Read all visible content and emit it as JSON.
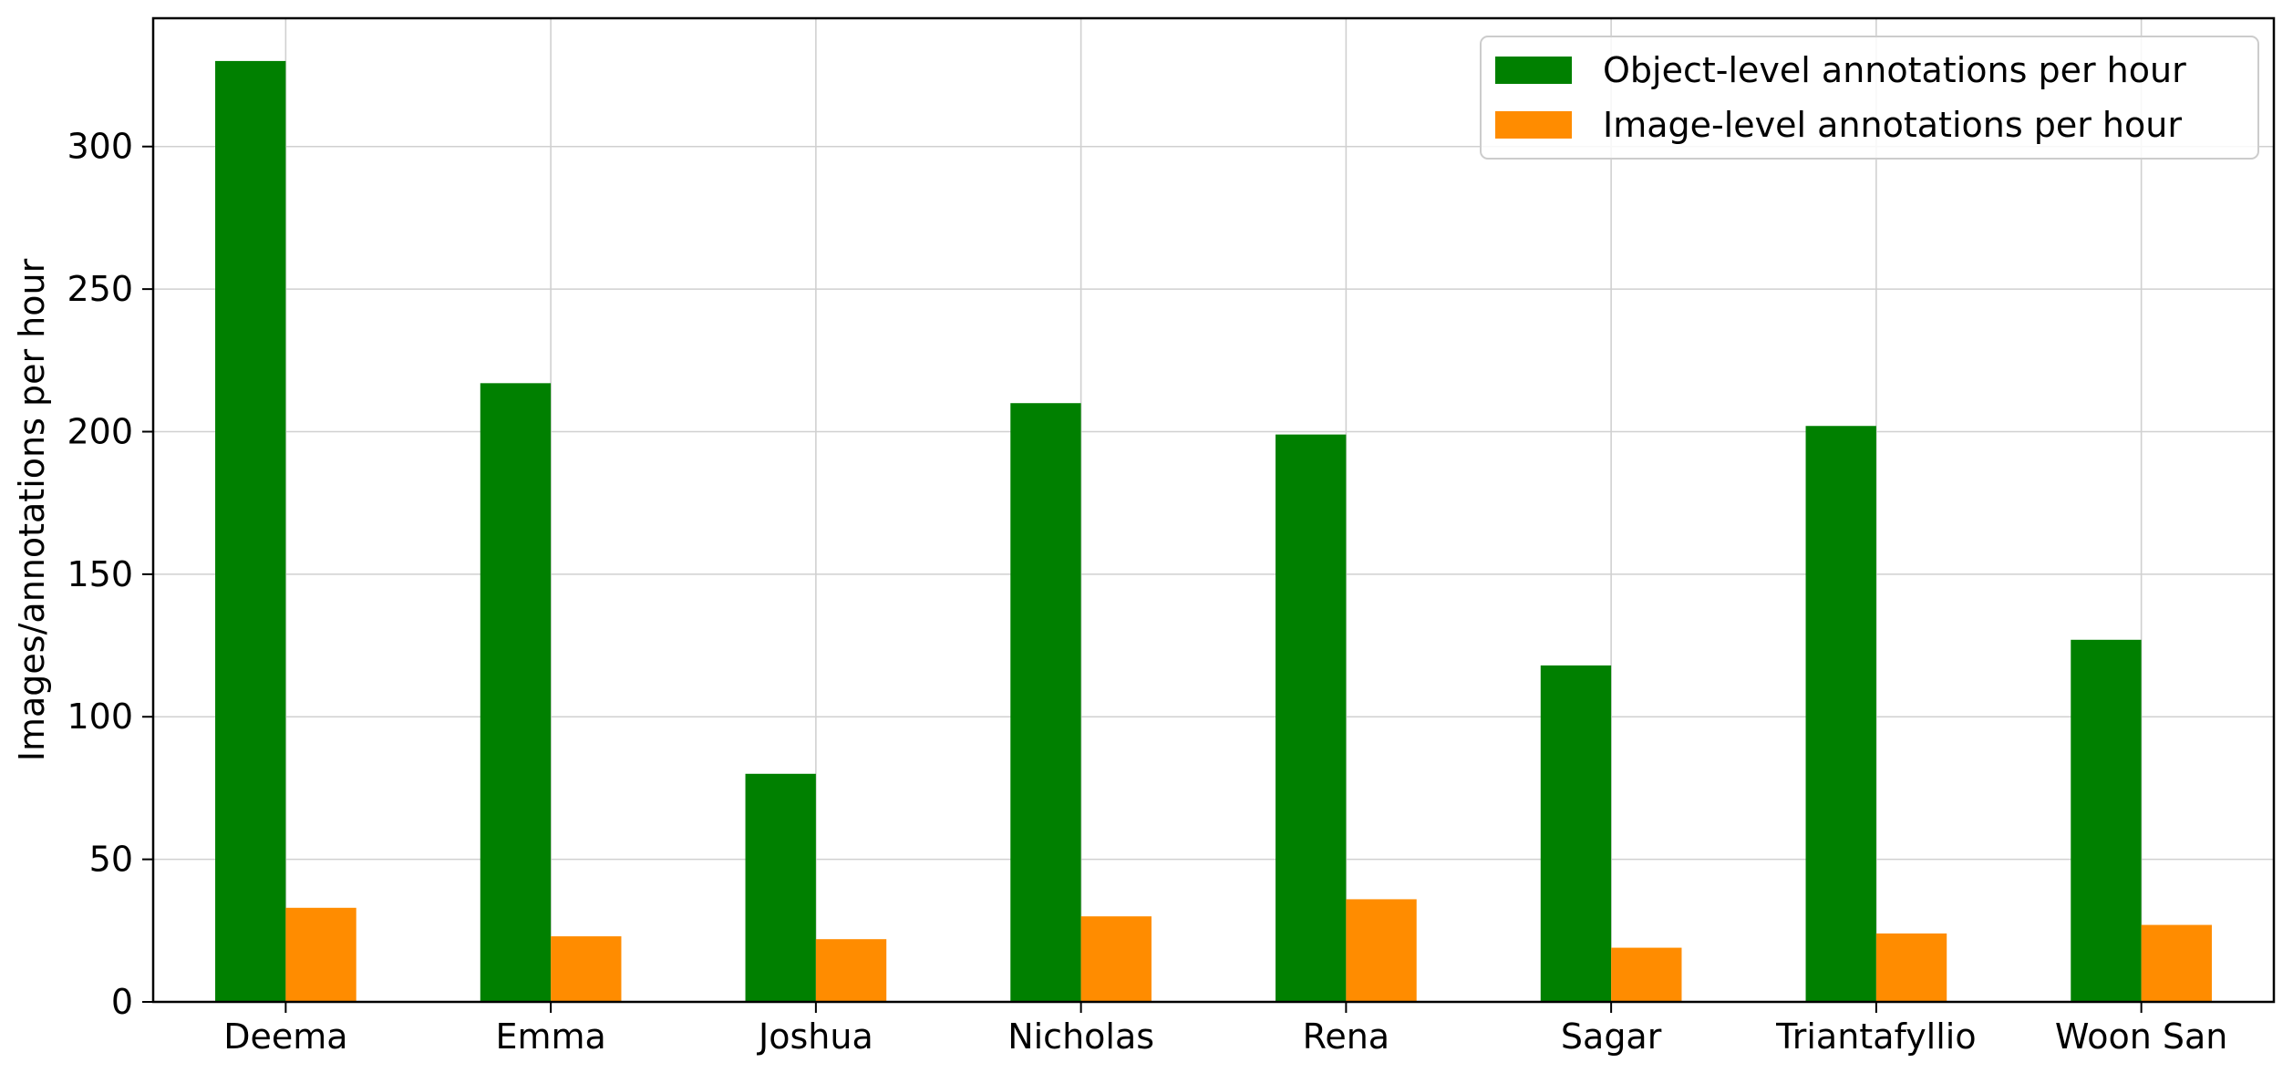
{
  "chart_data": {
    "type": "bar",
    "title": "",
    "xlabel": "",
    "ylabel": "Images/annotations  per hour",
    "ylim": [
      0,
      345
    ],
    "yticks": [
      0,
      50,
      100,
      150,
      200,
      250,
      300
    ],
    "grid": true,
    "legend_position": "top-right",
    "categories": [
      "Deema",
      "Emma",
      "Joshua",
      "Nicholas",
      "Rena",
      "Sagar",
      "Triantafyllio",
      "Woon San"
    ],
    "series": [
      {
        "name": "Object-level annotations per hour",
        "color": "#008000",
        "values": [
          330,
          217,
          80,
          210,
          199,
          118,
          202,
          127
        ]
      },
      {
        "name": "Image-level annotations per hour",
        "color": "#ff8c00",
        "values": [
          33,
          23,
          22,
          30,
          36,
          19,
          24,
          27
        ]
      }
    ]
  }
}
